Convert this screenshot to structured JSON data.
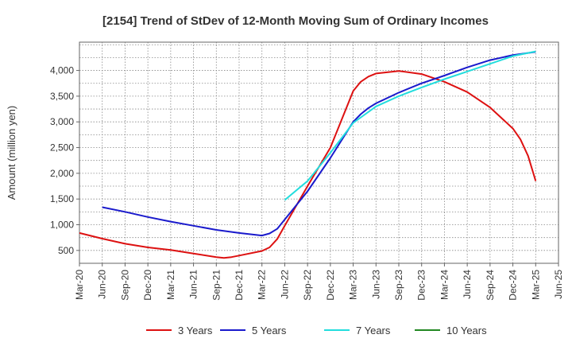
{
  "chart_data": {
    "type": "line",
    "title": "[2154]  Trend of StDev of 12-Month Moving Sum of Ordinary Incomes",
    "xlabel": "",
    "ylabel": "Amount (million yen)",
    "ylim": [
      250,
      4550
    ],
    "yticks": [
      500,
      1000,
      1500,
      2000,
      2500,
      3000,
      3500,
      4000
    ],
    "ytick_labels": [
      "500",
      "1,000",
      "1,500",
      "2,000",
      "2,500",
      "3,000",
      "3,500",
      "4,000"
    ],
    "x_tick_labels": [
      "Mar-20",
      "Jun-20",
      "Sep-20",
      "Dec-20",
      "Mar-21",
      "Jun-21",
      "Sep-21",
      "Dec-21",
      "Mar-22",
      "Jun-22",
      "Sep-22",
      "Dec-22",
      "Mar-23",
      "Jun-23",
      "Sep-23",
      "Dec-23",
      "Mar-24",
      "Jun-24",
      "Sep-24",
      "Dec-24",
      "Mar-25",
      "Jun-25"
    ],
    "grid": true,
    "legend_position": "bottom",
    "series": [
      {
        "name": "3 Years",
        "color": "#dd1111",
        "points": [
          [
            "Mar-20",
            840
          ],
          [
            "Jun-20",
            730
          ],
          [
            "Sep-20",
            630
          ],
          [
            "Dec-20",
            560
          ],
          [
            "Mar-21",
            510
          ],
          [
            "Jun-21",
            440
          ],
          [
            "Sep-21",
            370
          ],
          [
            "Oct-21",
            355
          ],
          [
            "Nov-21",
            370
          ],
          [
            "Dec-21",
            400
          ],
          [
            "Mar-22",
            490
          ],
          [
            "Apr-22",
            560
          ],
          [
            "May-22",
            720
          ],
          [
            "Jun-22",
            980
          ],
          [
            "Sep-22",
            1750
          ],
          [
            "Dec-22",
            2500
          ],
          [
            "Mar-23",
            3600
          ],
          [
            "Apr-23",
            3780
          ],
          [
            "May-23",
            3880
          ],
          [
            "Jun-23",
            3940
          ],
          [
            "Sep-23",
            3990
          ],
          [
            "Dec-23",
            3930
          ],
          [
            "Mar-24",
            3780
          ],
          [
            "Jun-24",
            3580
          ],
          [
            "Sep-24",
            3280
          ],
          [
            "Dec-24",
            2870
          ],
          [
            "Jan-25",
            2660
          ],
          [
            "Feb-25",
            2340
          ],
          [
            "Mar-25",
            1850
          ]
        ]
      },
      {
        "name": "5 Years",
        "color": "#1a1acc",
        "points": [
          [
            "Jun-20",
            1340
          ],
          [
            "Sep-20",
            1250
          ],
          [
            "Dec-20",
            1150
          ],
          [
            "Mar-21",
            1060
          ],
          [
            "Jun-21",
            980
          ],
          [
            "Sep-21",
            900
          ],
          [
            "Dec-21",
            840
          ],
          [
            "Mar-22",
            790
          ],
          [
            "Apr-22",
            830
          ],
          [
            "May-22",
            920
          ],
          [
            "Jun-22",
            1100
          ],
          [
            "Sep-22",
            1650
          ],
          [
            "Dec-22",
            2300
          ],
          [
            "Mar-23",
            3000
          ],
          [
            "Apr-23",
            3150
          ],
          [
            "May-23",
            3270
          ],
          [
            "Jun-23",
            3360
          ],
          [
            "Sep-23",
            3570
          ],
          [
            "Dec-23",
            3750
          ],
          [
            "Mar-24",
            3900
          ],
          [
            "Jun-24",
            4060
          ],
          [
            "Sep-24",
            4200
          ],
          [
            "Dec-24",
            4300
          ],
          [
            "Mar-25",
            4360
          ]
        ]
      },
      {
        "name": "7 Years",
        "color": "#22dddd",
        "points": [
          [
            "Jun-22",
            1480
          ],
          [
            "Sep-22",
            1850
          ],
          [
            "Dec-22",
            2400
          ],
          [
            "Mar-23",
            2980
          ],
          [
            "Jun-23",
            3300
          ],
          [
            "Sep-23",
            3500
          ],
          [
            "Dec-23",
            3670
          ],
          [
            "Mar-24",
            3830
          ],
          [
            "Jun-24",
            3980
          ],
          [
            "Sep-24",
            4130
          ],
          [
            "Dec-24",
            4280
          ],
          [
            "Mar-25",
            4370
          ]
        ]
      },
      {
        "name": "10 Years",
        "color": "#228822",
        "points": []
      }
    ]
  }
}
